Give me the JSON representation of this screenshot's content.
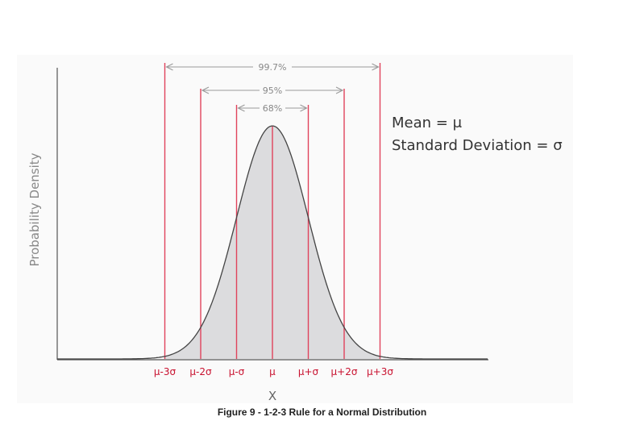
{
  "chart_data": {
    "type": "area",
    "title": "",
    "xlabel": "X",
    "ylabel": "Probability Density",
    "tick_labels": [
      "μ-3σ",
      "μ-2σ",
      "μ-σ",
      "μ",
      "μ+σ",
      "μ+2σ",
      "μ+3σ"
    ],
    "x": [
      -3,
      -2,
      -1,
      0,
      1,
      2,
      3
    ],
    "mean_label": "Mean = μ",
    "sd_label": "Standard Deviation = σ",
    "intervals": [
      {
        "label": "99.7%",
        "from": -3,
        "to": 3
      },
      {
        "label": "95%",
        "from": -2,
        "to": 2
      },
      {
        "label": "68%",
        "from": -1,
        "to": 1
      }
    ],
    "grid": false
  },
  "caption": "Figure 9 - 1-2-3 Rule for a Normal Distribution",
  "colors": {
    "sigma_line": "#e0435c",
    "tick_label": "#c8102e",
    "curve": "#444444",
    "fill": "#dcdcde",
    "arrow": "#9a9a9a",
    "axis": "#555555"
  }
}
